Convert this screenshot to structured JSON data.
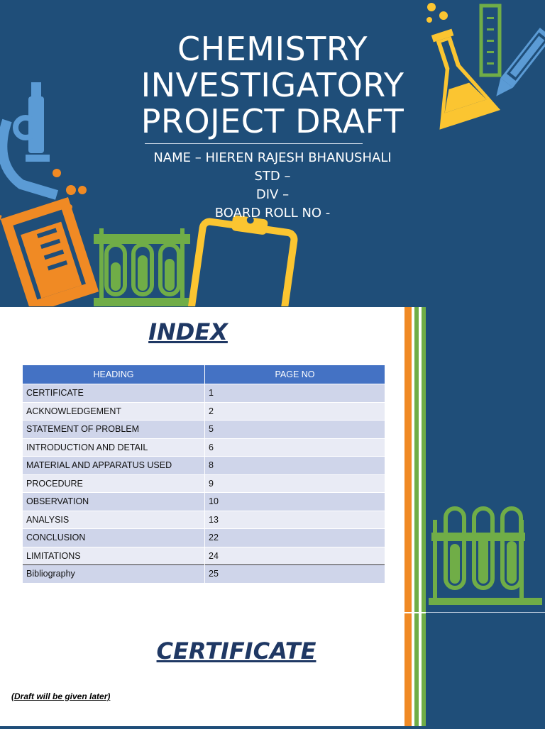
{
  "cover": {
    "title_lines": [
      "CHEMISTRY",
      "INVESTIGATORY",
      "PROJECT DRAFT"
    ],
    "name": "NAME – HIEREN RAJESH BHANUSHALI",
    "std": "STD –",
    "div": "DIV –",
    "roll": "BOARD ROLL NO -"
  },
  "index": {
    "title": "INDEX",
    "headers": [
      "HEADING",
      "PAGE NO"
    ],
    "rows": [
      {
        "heading": "CERTIFICATE",
        "page": "1"
      },
      {
        "heading": "ACKNOWLEDGEMENT",
        "page": "2"
      },
      {
        "heading": "STATEMENT OF PROBLEM",
        "page": "5"
      },
      {
        "heading": "INTRODUCTION AND DETAIL",
        "page": "6"
      },
      {
        "heading": "MATERIAL AND APPARATUS USED",
        "page": "8"
      },
      {
        "heading": "PROCEDURE",
        "page": "9"
      },
      {
        "heading": "OBSERVATION",
        "page": "10"
      },
      {
        "heading": "ANALYSIS",
        "page": "13"
      },
      {
        "heading": "CONCLUSION",
        "page": "22"
      },
      {
        "heading": "LIMITATIONS",
        "page": "24"
      },
      {
        "heading": "Bibliography",
        "page": "25"
      }
    ]
  },
  "certificate": {
    "title": "CERTIFICATE",
    "note": "(Draft will be given later)"
  },
  "colors": {
    "background": "#1f4e79",
    "heading_blue": "#1f3864",
    "table_header": "#4472c4",
    "orange": "#f08a24",
    "green": "#70ad47",
    "yellow": "#fbc531",
    "light_blue": "#5b9bd5"
  }
}
